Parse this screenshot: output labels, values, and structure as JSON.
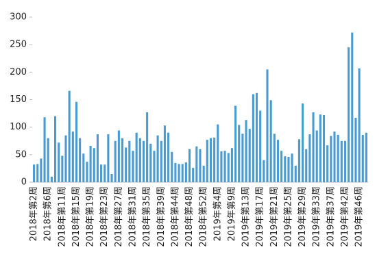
{
  "chart_data": {
    "type": "bar",
    "color": "#4a9bd1",
    "categories": [
      "2018年第2周",
      null,
      null,
      null,
      "2018年第6周",
      null,
      null,
      null,
      "2018年第11周",
      null,
      null,
      null,
      "2018年第15周",
      null,
      null,
      null,
      "2018年第19周",
      null,
      null,
      null,
      "2018年第23周",
      null,
      null,
      null,
      "2018年第27周",
      null,
      null,
      null,
      "2018年第31周",
      null,
      null,
      null,
      "2018年第35周",
      null,
      null,
      null,
      "2018年第39周",
      null,
      null,
      null,
      "2018年第44周",
      null,
      null,
      null,
      "2018年第48周",
      null,
      null,
      null,
      "2018年第52周",
      null,
      null,
      null,
      "2019年第4周",
      null,
      null,
      null,
      "2019年第9周",
      null,
      null,
      null,
      "2019年第13周",
      null,
      null,
      null,
      "2019年第17周",
      null,
      null,
      null,
      "2019年第21周",
      null,
      null,
      null,
      "2019年第25周",
      null,
      null,
      null,
      "2019年第29周",
      null,
      null,
      null,
      "2019年第33周",
      null,
      null,
      null,
      "2019年第37周",
      null,
      null,
      null,
      "2019年第42周",
      null,
      null,
      null,
      "2019年第46周",
      null,
      null
    ],
    "values": [
      32,
      33,
      43,
      118,
      80,
      10,
      120,
      72,
      48,
      85,
      166,
      92,
      146,
      80,
      52,
      37,
      66,
      62,
      87,
      32,
      32,
      87,
      15,
      75,
      94,
      80,
      63,
      75,
      57,
      90,
      80,
      75,
      127,
      70,
      57,
      85,
      75,
      103,
      90,
      55,
      35,
      33,
      33,
      36,
      60,
      26,
      65,
      60,
      30,
      77,
      80,
      81,
      105,
      56,
      57,
      53,
      62,
      139,
      104,
      88,
      113,
      97,
      160,
      162,
      130,
      40,
      205,
      149,
      88,
      77,
      57,
      47,
      46,
      52,
      30,
      78,
      143,
      60,
      87,
      127,
      94,
      123,
      122,
      67,
      84,
      92,
      86,
      75,
      75,
      245,
      272,
      117,
      207,
      86,
      90
    ],
    "ylim": [
      0,
      300
    ],
    "yticks": [
      0,
      50,
      100,
      150,
      200,
      250,
      300
    ]
  }
}
